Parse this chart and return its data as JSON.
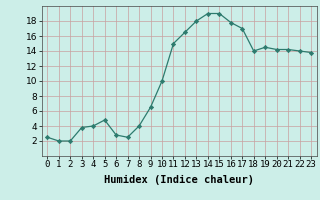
{
  "x": [
    0,
    1,
    2,
    3,
    4,
    5,
    6,
    7,
    8,
    9,
    10,
    11,
    12,
    13,
    14,
    15,
    16,
    17,
    18,
    19,
    20,
    21,
    22,
    23
  ],
  "y": [
    2.5,
    2.0,
    2.0,
    3.8,
    4.0,
    4.8,
    2.8,
    2.5,
    4.0,
    6.5,
    10.0,
    15.0,
    16.5,
    18.0,
    19.0,
    19.0,
    17.8,
    17.0,
    14.0,
    14.5,
    14.2,
    14.2,
    14.0,
    13.8
  ],
  "line_color": "#2d7b6e",
  "marker": "D",
  "marker_size": 2.2,
  "bg_color": "#cceee8",
  "grid_color": "#c9a0a0",
  "xlabel": "Humidex (Indice chaleur)",
  "ylim": [
    0,
    20
  ],
  "xlim": [
    -0.5,
    23.5
  ],
  "yticks": [
    2,
    4,
    6,
    8,
    10,
    12,
    14,
    16,
    18
  ],
  "xtick_labels": [
    "0",
    "1",
    "2",
    "3",
    "4",
    "5",
    "6",
    "7",
    "8",
    "9",
    "10",
    "11",
    "12",
    "13",
    "14",
    "15",
    "16",
    "17",
    "18",
    "19",
    "20",
    "21",
    "22",
    "23"
  ],
  "label_fontsize": 7.5,
  "tick_fontsize": 6.5
}
